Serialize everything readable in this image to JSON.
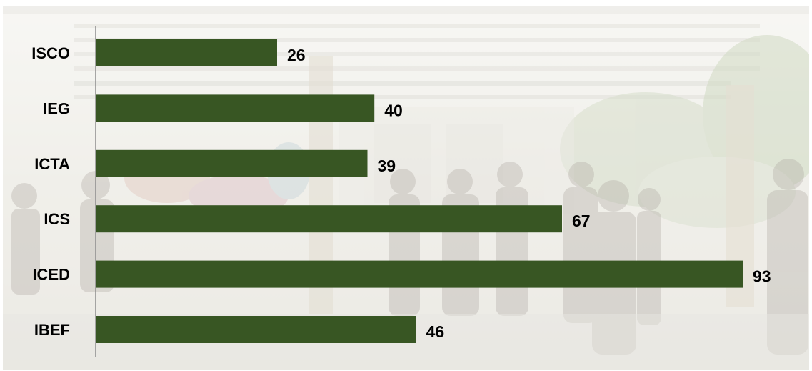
{
  "chart_data": {
    "type": "bar",
    "orientation": "horizontal",
    "categories": [
      "ISCO",
      "IEG",
      "ICTA",
      "ICS",
      "ICED",
      "IBEF"
    ],
    "values": [
      26,
      40,
      39,
      67,
      93,
      46
    ],
    "value_labels": [
      "26",
      "40",
      "39",
      "67",
      "93",
      "46"
    ],
    "title": "",
    "xlabel": "",
    "ylabel": "",
    "xlim": [
      0,
      93
    ],
    "grid": false,
    "legend": "none",
    "bar_color": "#385623"
  }
}
